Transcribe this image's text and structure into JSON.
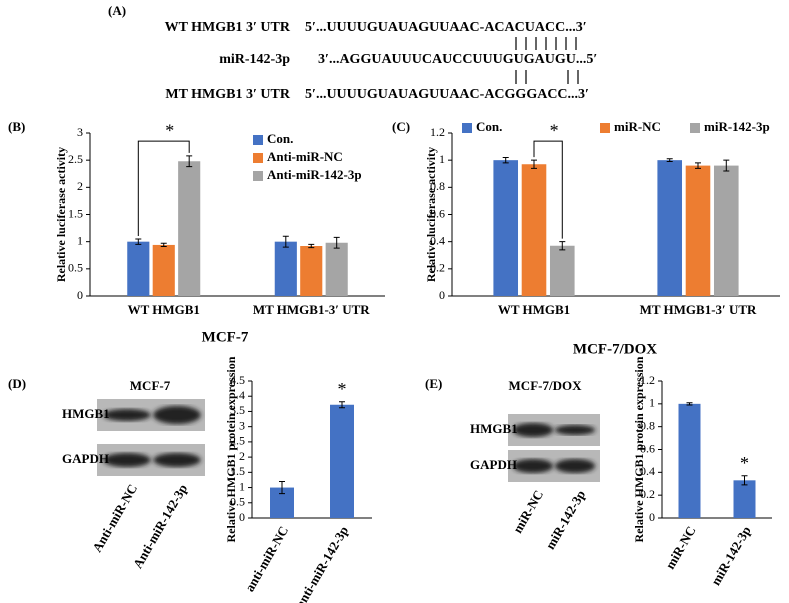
{
  "panel_a": {
    "panel": "(A)",
    "rows": [
      {
        "label": "WT HMGB1 3′ UTR",
        "sequence": "5′...UUUUGUAUAGUUAAC-ACACUACC...3′"
      },
      {
        "label": "miR-142-3p",
        "sequence": "3′...AGGUAUUUCAUCCUUUGUGAUGU...5′"
      },
      {
        "label": "MT HMGB1 3′ UTR",
        "sequence": "5′...UUUUGUAUAGUUAAC-ACGGGACC...3′"
      }
    ]
  },
  "chart_data": [
    {
      "type": "bar",
      "panel": "(B)",
      "title": "MCF-7",
      "ylabel": "Relative luciferase activity",
      "categories": [
        "WT HMGB1",
        "MT HMGB1-3′ UTR"
      ],
      "series": [
        {
          "name": "Con.",
          "color": "#4472c4",
          "values": [
            1.0,
            1.0
          ],
          "errors": [
            0.05,
            0.1
          ]
        },
        {
          "name": "Anti-miR-NC",
          "color": "#ed7d31",
          "values": [
            0.94,
            0.92
          ],
          "errors": [
            0.03,
            0.03
          ]
        },
        {
          "name": "Anti-miR-142-3p",
          "color": "#a5a5a5",
          "values": [
            2.48,
            0.98
          ],
          "errors": [
            0.1,
            0.1
          ]
        }
      ],
      "ylim": [
        0,
        3
      ],
      "yticks": [
        0,
        0.5,
        1,
        1.5,
        2,
        2.5,
        3
      ],
      "legend": "top-right",
      "annotations": [
        "*"
      ]
    },
    {
      "type": "bar",
      "panel": "(C)",
      "title": "MCF-7/DOX",
      "ylabel": "Relative luciferase activity",
      "categories": [
        "WT HMGB1",
        "MT HMGB1-3′ UTR"
      ],
      "series": [
        {
          "name": "Con.",
          "color": "#4472c4",
          "values": [
            1.0,
            1.0
          ],
          "errors": [
            0.02,
            0.01
          ]
        },
        {
          "name": "miR-NC",
          "color": "#ed7d31",
          "values": [
            0.97,
            0.96
          ],
          "errors": [
            0.03,
            0.02
          ]
        },
        {
          "name": "miR-142-3p",
          "color": "#a5a5a5",
          "values": [
            0.37,
            0.96
          ],
          "errors": [
            0.03,
            0.04
          ]
        }
      ],
      "ylim": [
        0,
        1.2
      ],
      "yticks": [
        0,
        0.2,
        0.4,
        0.6,
        0.8,
        1,
        1.2
      ],
      "legend": "top",
      "annotations": [
        "*"
      ]
    },
    {
      "type": "bar",
      "panel": "(D)",
      "ylabel": "Relative HMGB1 protein expression",
      "categories": [
        "anti-miR-NC",
        "anti-miR-142-3p"
      ],
      "series": [
        {
          "color": "#4472c4",
          "values": [
            1.0,
            3.72
          ],
          "errors": [
            0.2,
            0.1
          ]
        }
      ],
      "ylim": [
        0,
        4.5
      ],
      "yticks": [
        0,
        0.5,
        1,
        1.5,
        2,
        2.5,
        3,
        3.5,
        4,
        4.5
      ],
      "annotations": [
        "*"
      ],
      "blot": {
        "title": "MCF-7",
        "rows": [
          "HMGB1",
          "GAPDH"
        ],
        "lanes": [
          "Anti-miR-NC",
          "Anti-miR-142-3p"
        ]
      }
    },
    {
      "type": "bar",
      "panel": "(E)",
      "ylabel": "Relative HMGB1 protein expression",
      "categories": [
        "miR-NC",
        "miR-142-3p"
      ],
      "series": [
        {
          "color": "#4472c4",
          "values": [
            1.0,
            0.33
          ],
          "errors": [
            0.01,
            0.04
          ]
        }
      ],
      "ylim": [
        0,
        1.2
      ],
      "yticks": [
        0,
        0.2,
        0.4,
        0.6,
        0.8,
        1,
        1.2
      ],
      "annotations": [
        "*"
      ],
      "blot": {
        "title": "MCF-7/DOX",
        "rows": [
          "HMGB1",
          "GAPDH"
        ],
        "lanes": [
          "miR-NC",
          "miR-142-3p"
        ]
      }
    }
  ]
}
